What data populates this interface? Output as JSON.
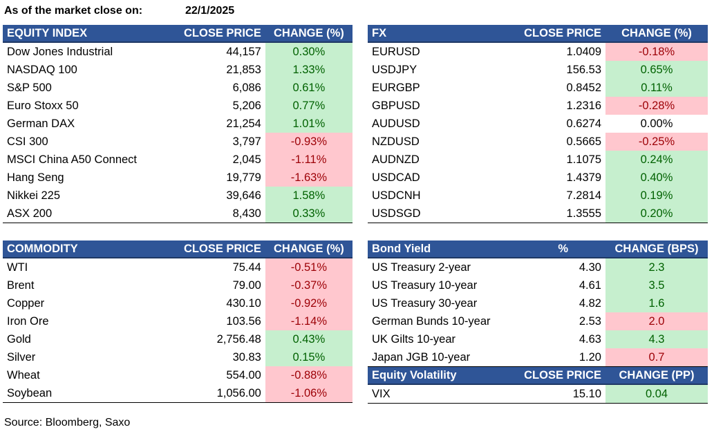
{
  "header": {
    "label": "As of the market close on:",
    "date": "22/1/2025"
  },
  "equity": {
    "headers": [
      "EQUITY INDEX",
      "CLOSE PRICE",
      "CHANGE (%)"
    ],
    "rows": [
      {
        "name": "Dow Jones Industrial",
        "price": "44,157",
        "change": "0.30%",
        "dir": "pos"
      },
      {
        "name": "NASDAQ 100",
        "price": "21,853",
        "change": "1.33%",
        "dir": "pos"
      },
      {
        "name": "S&P 500",
        "price": "6,086",
        "change": "0.61%",
        "dir": "pos"
      },
      {
        "name": "Euro Stoxx 50",
        "price": "5,206",
        "change": "0.77%",
        "dir": "pos"
      },
      {
        "name": "German DAX",
        "price": "21,254",
        "change": "1.01%",
        "dir": "pos"
      },
      {
        "name": "CSI 300",
        "price": "3,797",
        "change": "-0.93%",
        "dir": "neg"
      },
      {
        "name": "MSCI China A50 Connect",
        "price": "2,045",
        "change": "-1.11%",
        "dir": "neg"
      },
      {
        "name": "Hang Seng",
        "price": "19,779",
        "change": "-1.63%",
        "dir": "neg"
      },
      {
        "name": "Nikkei 225",
        "price": "39,646",
        "change": "1.58%",
        "dir": "pos"
      },
      {
        "name": "ASX 200",
        "price": "8,430",
        "change": "0.33%",
        "dir": "pos"
      }
    ]
  },
  "fx": {
    "headers": [
      "FX",
      "CLOSE PRICE",
      "CHANGE (%)"
    ],
    "rows": [
      {
        "name": "EURUSD",
        "price": "1.0409",
        "change": "-0.18%",
        "dir": "neg"
      },
      {
        "name": "USDJPY",
        "price": "156.53",
        "change": "0.65%",
        "dir": "pos"
      },
      {
        "name": "EURGBP",
        "price": "0.8452",
        "change": "0.11%",
        "dir": "pos"
      },
      {
        "name": "GBPUSD",
        "price": "1.2316",
        "change": "-0.28%",
        "dir": "neg"
      },
      {
        "name": "AUDUSD",
        "price": "0.6274",
        "change": "0.00%",
        "dir": "flat"
      },
      {
        "name": "NZDUSD",
        "price": "0.5665",
        "change": "-0.25%",
        "dir": "neg"
      },
      {
        "name": "AUDNZD",
        "price": "1.1075",
        "change": "0.24%",
        "dir": "pos"
      },
      {
        "name": "USDCAD",
        "price": "1.4379",
        "change": "0.40%",
        "dir": "pos"
      },
      {
        "name": "USDCNH",
        "price": "7.2814",
        "change": "0.19%",
        "dir": "pos"
      },
      {
        "name": "USDSGD",
        "price": "1.3555",
        "change": "0.20%",
        "dir": "pos"
      }
    ]
  },
  "commodity": {
    "headers": [
      "COMMODITY",
      "CLOSE PRICE",
      "CHANGE (%)"
    ],
    "rows": [
      {
        "name": "WTI",
        "price": "75.44",
        "change": "-0.51%",
        "dir": "neg"
      },
      {
        "name": "Brent",
        "price": "79.00",
        "change": "-0.37%",
        "dir": "neg"
      },
      {
        "name": "Copper",
        "price": "430.10",
        "change": "-0.92%",
        "dir": "neg"
      },
      {
        "name": "Iron Ore",
        "price": "103.56",
        "change": "-1.14%",
        "dir": "neg"
      },
      {
        "name": "Gold",
        "price": "2,756.48",
        "change": "0.43%",
        "dir": "pos"
      },
      {
        "name": "Silver",
        "price": "30.83",
        "change": "0.15%",
        "dir": "pos"
      },
      {
        "name": "Wheat",
        "price": "554.00",
        "change": "-0.88%",
        "dir": "neg"
      },
      {
        "name": "Soybean",
        "price": "1,056.00",
        "change": "-1.06%",
        "dir": "neg"
      }
    ]
  },
  "bond": {
    "headers": [
      "Bond Yield",
      "%",
      "CHANGE (BPS)"
    ],
    "rows": [
      {
        "name": "US Treasury 2-year",
        "price": "4.30",
        "change": "2.3",
        "dir": "pos"
      },
      {
        "name": "US Treasury 10-year",
        "price": "4.61",
        "change": "3.5",
        "dir": "pos"
      },
      {
        "name": "US Treasury 30-year",
        "price": "4.82",
        "change": "1.6",
        "dir": "pos"
      },
      {
        "name": "German Bunds 10-year",
        "price": "2.53",
        "change": "2.0",
        "dir": "neg"
      },
      {
        "name": "UK Gilts 10-year",
        "price": "4.63",
        "change": "4.3",
        "dir": "pos"
      },
      {
        "name": "Japan JGB 10-year",
        "price": "1.20",
        "change": "0.7",
        "dir": "neg"
      }
    ]
  },
  "volatility": {
    "headers": [
      "Equity Volatility",
      "CLOSE PRICE",
      "CHANGE (PP)"
    ],
    "rows": [
      {
        "name": "VIX",
        "price": "15.10",
        "change": "0.04",
        "dir": "pos"
      }
    ]
  },
  "footer": {
    "source": "Source: Bloomberg, Saxo"
  },
  "colors": {
    "header_bg": "#2f5597",
    "positive_bg": "#c6efce",
    "positive_text": "#006100",
    "negative_bg": "#ffc7ce",
    "negative_text": "#9c0006"
  }
}
